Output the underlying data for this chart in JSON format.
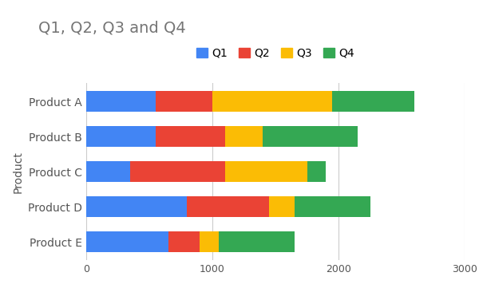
{
  "title": "Q1, Q2, Q3 and Q4",
  "ylabel": "Product",
  "categories": [
    "Product A",
    "Product B",
    "Product C",
    "Product D",
    "Product E"
  ],
  "quarters": [
    "Q1",
    "Q2",
    "Q3",
    "Q4"
  ],
  "values": {
    "Q1": [
      550,
      550,
      350,
      800,
      650
    ],
    "Q2": [
      450,
      550,
      750,
      650,
      250
    ],
    "Q3": [
      950,
      300,
      650,
      200,
      150
    ],
    "Q4": [
      650,
      750,
      150,
      600,
      600
    ]
  },
  "colors": {
    "Q1": "#4285F4",
    "Q2": "#EA4335",
    "Q3": "#FBBC05",
    "Q4": "#34A853"
  },
  "xlim": [
    0,
    3000
  ],
  "xticks": [
    0,
    1000,
    2000,
    3000
  ],
  "background_color": "#ffffff",
  "title_color": "#757575",
  "title_fontsize": 14,
  "label_fontsize": 10,
  "tick_fontsize": 9,
  "legend_fontsize": 10,
  "grid_color": "#cccccc"
}
